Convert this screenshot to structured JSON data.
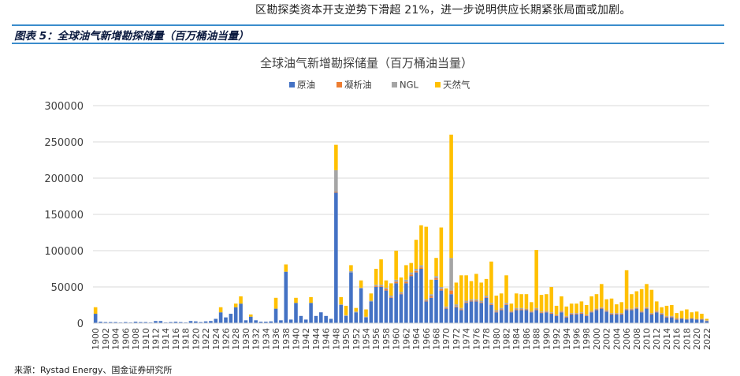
{
  "intro_text": "区勘探类资本开支逆势下滑超 21%，进一步说明供应长期紧张局面或加剧。",
  "figure_title": "图表 5：全球油气新增勘探储量（百万桶油当量）",
  "source": "来源：Rystad Energy、国金证券研究所",
  "chart_data": {
    "type": "bar",
    "stacked": true,
    "title": "全球油气新增勘探储量（百万桶油当量）",
    "legend_position": "top",
    "grid": true,
    "ylim": [
      0,
      300000
    ],
    "yticks": [
      0,
      50000,
      100000,
      150000,
      200000,
      250000,
      300000
    ],
    "x_start": 1900,
    "x_end": 2022,
    "x_label_step": 2,
    "x": [
      1900,
      1901,
      1902,
      1903,
      1904,
      1905,
      1906,
      1907,
      1908,
      1909,
      1910,
      1911,
      1912,
      1913,
      1914,
      1915,
      1916,
      1917,
      1918,
      1919,
      1920,
      1921,
      1922,
      1923,
      1924,
      1925,
      1926,
      1927,
      1928,
      1929,
      1930,
      1931,
      1932,
      1933,
      1934,
      1935,
      1936,
      1937,
      1938,
      1939,
      1940,
      1941,
      1942,
      1943,
      1944,
      1945,
      1946,
      1947,
      1948,
      1949,
      1950,
      1951,
      1952,
      1953,
      1954,
      1955,
      1956,
      1957,
      1958,
      1959,
      1960,
      1961,
      1962,
      1963,
      1964,
      1965,
      1966,
      1967,
      1968,
      1969,
      1970,
      1971,
      1972,
      1973,
      1974,
      1975,
      1976,
      1977,
      1978,
      1979,
      1980,
      1981,
      1982,
      1983,
      1984,
      1985,
      1986,
      1987,
      1988,
      1989,
      1990,
      1991,
      1992,
      1993,
      1994,
      1995,
      1996,
      1997,
      1998,
      1999,
      2000,
      2001,
      2002,
      2003,
      2004,
      2005,
      2006,
      2007,
      2008,
      2009,
      2010,
      2011,
      2012,
      2013,
      2014,
      2015,
      2016,
      2017,
      2018,
      2019,
      2020,
      2021,
      2022
    ],
    "colors": {
      "axis": "#d9d9d9",
      "grid": "#d9d9d9",
      "tick_text": "#404040",
      "title_text": "#404040"
    },
    "series": [
      {
        "name": "原油",
        "color": "#4472c4",
        "values": [
          13000,
          2000,
          1500,
          1500,
          1500,
          1000,
          1500,
          1000,
          2000,
          1500,
          1500,
          1000,
          3000,
          3000,
          1000,
          1500,
          2000,
          1500,
          1000,
          3000,
          2500,
          1500,
          2500,
          3000,
          6000,
          15000,
          8000,
          13000,
          22000,
          27000,
          4000,
          9000,
          4000,
          2000,
          2000,
          2500,
          20000,
          4000,
          71000,
          5000,
          28000,
          10000,
          5000,
          28000,
          10000,
          15000,
          10000,
          6000,
          180000,
          25000,
          10000,
          70000,
          15000,
          48000,
          8000,
          30000,
          50000,
          50000,
          45000,
          35000,
          55000,
          40000,
          55000,
          65000,
          70000,
          75000,
          30000,
          35000,
          60000,
          45000,
          20000,
          40000,
          22000,
          18000,
          28000,
          30000,
          30000,
          28000,
          35000,
          25000,
          15000,
          18000,
          25000,
          15000,
          18000,
          18000,
          18000,
          15000,
          18000,
          14000,
          15000,
          13000,
          10000,
          15000,
          8000,
          12000,
          12000,
          13000,
          10000,
          15000,
          18000,
          20000,
          16000,
          12000,
          12000,
          12000,
          18000,
          18000,
          20000,
          15000,
          20000,
          12000,
          15000,
          12000,
          8000,
          8000,
          5000,
          6000,
          5000,
          6000,
          5000,
          5000,
          3000
        ]
      },
      {
        "name": "凝析油",
        "color": "#ed7d31",
        "values": [
          0,
          0,
          0,
          0,
          0,
          0,
          0,
          0,
          0,
          0,
          0,
          0,
          0,
          0,
          0,
          0,
          0,
          0,
          0,
          0,
          0,
          0,
          0,
          0,
          0,
          0,
          0,
          0,
          0,
          0,
          0,
          0,
          0,
          0,
          0,
          0,
          0,
          0,
          0,
          0,
          0,
          0,
          0,
          0,
          0,
          0,
          0,
          0,
          1000,
          0,
          0,
          0,
          0,
          0,
          0,
          0,
          1000,
          1000,
          2000,
          1000,
          2000,
          1000,
          2000,
          2000,
          2000,
          2000,
          1000,
          2000,
          2000,
          2000,
          1000,
          5000,
          1000,
          1000,
          1000,
          1000,
          1000,
          1000,
          1000,
          1000,
          1000,
          1000,
          1000,
          1000,
          1000,
          1000,
          1000,
          1000,
          1000,
          1000,
          1000,
          1000,
          1000,
          1000,
          1000,
          1000,
          1000,
          1000,
          1000,
          1000,
          1000,
          1000,
          1000,
          1000,
          1000,
          1000,
          1000,
          1000,
          1000,
          1000,
          1000,
          1000,
          1000,
          1000,
          1000,
          1000,
          1000,
          500,
          500,
          500,
          500,
          500,
          500
        ]
      },
      {
        "name": "NGL",
        "color": "#a5a5a5",
        "values": [
          0,
          0,
          0,
          0,
          0,
          0,
          0,
          0,
          0,
          0,
          0,
          0,
          0,
          0,
          0,
          0,
          0,
          0,
          0,
          0,
          0,
          0,
          0,
          0,
          0,
          0,
          0,
          0,
          0,
          0,
          0,
          0,
          0,
          0,
          0,
          0,
          0,
          0,
          0,
          0,
          0,
          0,
          0,
          0,
          0,
          0,
          0,
          0,
          30000,
          1000,
          1000,
          2000,
          1000,
          1000,
          1000,
          1000,
          2000,
          2000,
          2000,
          2000,
          3000,
          2000,
          3000,
          3000,
          3000,
          3000,
          2000,
          3000,
          3000,
          3000,
          2000,
          45000,
          3000,
          2000,
          2000,
          2000,
          2000,
          2000,
          2000,
          2000,
          2000,
          2000,
          2000,
          1000,
          2000,
          2000,
          1000,
          1000,
          2000,
          1000,
          1000,
          1000,
          1000,
          1000,
          1000,
          1000,
          1000,
          1000,
          1000,
          1000,
          1000,
          1000,
          1000,
          1000,
          1000,
          1000,
          1000,
          1000,
          1000,
          1000,
          1000,
          1000,
          1000,
          1000,
          1000,
          1000,
          1000,
          500,
          500,
          500,
          500,
          500,
          500
        ]
      },
      {
        "name": "天然气",
        "color": "#ffc000",
        "values": [
          9000,
          0,
          0,
          0,
          0,
          0,
          0,
          0,
          0,
          0,
          0,
          0,
          0,
          0,
          0,
          0,
          0,
          0,
          0,
          0,
          0,
          0,
          0,
          0,
          0,
          7000,
          0,
          0,
          5000,
          10000,
          0,
          3000,
          0,
          0,
          0,
          0,
          15000,
          0,
          10000,
          0,
          7000,
          0,
          0,
          8000,
          0,
          0,
          0,
          0,
          35000,
          10000,
          13000,
          8000,
          5000,
          10000,
          10000,
          10000,
          22000,
          35000,
          10000,
          17000,
          40000,
          20000,
          20000,
          13000,
          40000,
          55000,
          100000,
          20000,
          25000,
          82000,
          25000,
          170000,
          30000,
          45000,
          35000,
          25000,
          35000,
          25000,
          23000,
          57000,
          20000,
          20000,
          38000,
          10000,
          20000,
          19000,
          20000,
          12000,
          80000,
          23000,
          23000,
          35000,
          12000,
          20000,
          13000,
          13000,
          13000,
          15000,
          13000,
          20000,
          20000,
          32000,
          15000,
          20000,
          12000,
          15000,
          53000,
          20000,
          22000,
          30000,
          32000,
          32000,
          13000,
          8000,
          14000,
          15000,
          7000,
          10000,
          13000,
          8000,
          10000,
          7000,
          2000
        ]
      }
    ]
  }
}
